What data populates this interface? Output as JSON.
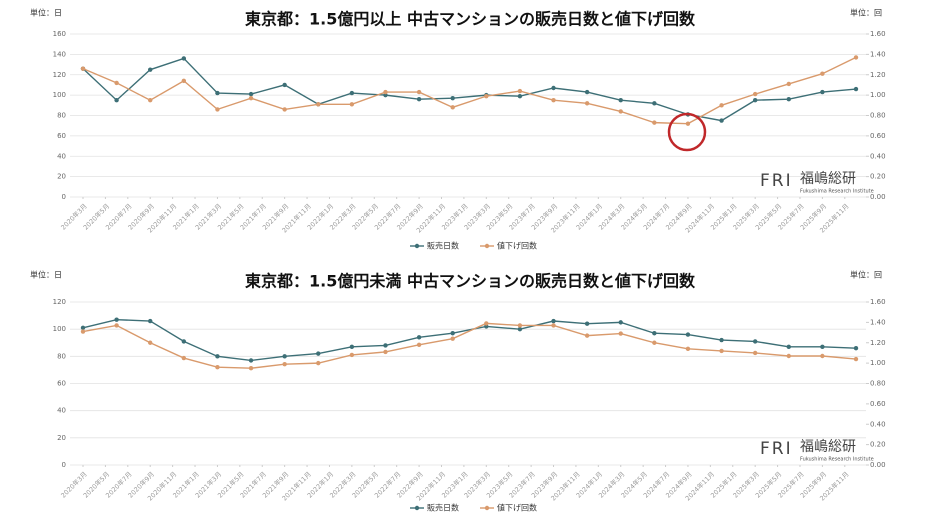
{
  "chart_data": [
    {
      "type": "line",
      "title": "東京都：1.5億円以上 中古マンションの販売日数と値下げ回数",
      "ylabel": "単位：日",
      "y2label": "単位：回",
      "watermark": {
        "mark": "FRI",
        "name": "福嶋総研",
        "subtitle": "Fukushima Research Institute"
      },
      "x": [
        "2020-03",
        "2020-06",
        "2020-09",
        "2020-12",
        "2021-03",
        "2021-06",
        "2021-09",
        "2021-12",
        "2022-03",
        "2022-06",
        "2022-09",
        "2022-12",
        "2023-03",
        "2023-06",
        "2023-09",
        "2023-12",
        "2024-03",
        "2024-06",
        "2024-09",
        "2024-12",
        "2025-03",
        "2025-06",
        "2025-09",
        "2025-12"
      ],
      "xlim": [
        "2020-03",
        "2025-12"
      ],
      "xticks": [
        {
          "value": "2020-03",
          "label": "2020年3月"
        },
        {
          "value": "2020-05",
          "label": "2020年5月"
        },
        {
          "value": "2020-07",
          "label": "2020年7月"
        },
        {
          "value": "2020-09",
          "label": "2020年9月"
        },
        {
          "value": "2020-11",
          "label": "2020年11月"
        },
        {
          "value": "2021-01",
          "label": "2021年1月"
        },
        {
          "value": "2021-03",
          "label": "2021年3月"
        },
        {
          "value": "2021-05",
          "label": "2021年5月"
        },
        {
          "value": "2021-07",
          "label": "2021年7月"
        },
        {
          "value": "2021-09",
          "label": "2021年9月"
        },
        {
          "value": "2021-11",
          "label": "2021年11月"
        },
        {
          "value": "2022-01",
          "label": "2022年1月"
        },
        {
          "value": "2022-03",
          "label": "2022年3月"
        },
        {
          "value": "2022-05",
          "label": "2022年5月"
        },
        {
          "value": "2022-07",
          "label": "2022年7月"
        },
        {
          "value": "2022-09",
          "label": "2022年9月"
        },
        {
          "value": "2022-11",
          "label": "2022年11月"
        },
        {
          "value": "2023-01",
          "label": "2023年1月"
        },
        {
          "value": "2023-03",
          "label": "2023年3月"
        },
        {
          "value": "2023-05",
          "label": "2023年5月"
        },
        {
          "value": "2023-07",
          "label": "2023年7月"
        },
        {
          "value": "2023-09",
          "label": "2023年9月"
        },
        {
          "value": "2023-11",
          "label": "2023年11月"
        },
        {
          "value": "2024-01",
          "label": "2024年1月"
        },
        {
          "value": "2024-03",
          "label": "2024年3月"
        },
        {
          "value": "2024-05",
          "label": "2024年5月"
        },
        {
          "value": "2024-07",
          "label": "2024年7月"
        },
        {
          "value": "2024-09",
          "label": "2024年9月"
        },
        {
          "value": "2024-11",
          "label": "2024年11月"
        },
        {
          "value": "2025-01",
          "label": "2025年1月"
        },
        {
          "value": "2025-03",
          "label": "2025年3月"
        },
        {
          "value": "2025-05",
          "label": "2025年5月"
        },
        {
          "value": "2025-07",
          "label": "2025年7月"
        },
        {
          "value": "2025-09",
          "label": "2025年9月"
        },
        {
          "value": "2025-11",
          "label": "2025年11月"
        }
      ],
      "ylim": [
        0,
        160
      ],
      "yticks": [
        0,
        20,
        40,
        60,
        80,
        100,
        120,
        140,
        160
      ],
      "y2lim": [
        0,
        1.6
      ],
      "y2ticks": [
        {
          "value": 0,
          "label": "0.00"
        },
        {
          "value": 0.2,
          "label": "0.20"
        },
        {
          "value": 0.4,
          "label": "0.40"
        },
        {
          "value": 0.6,
          "label": "0.60"
        },
        {
          "value": 0.8,
          "label": "0.80"
        },
        {
          "value": 1,
          "label": "1.00"
        },
        {
          "value": 1.2,
          "label": "1.20"
        },
        {
          "value": 1.4,
          "label": "1.40"
        },
        {
          "value": 1.6,
          "label": "1.60"
        }
      ],
      "grid": true,
      "series": [
        {
          "name": "販売日数",
          "color": "#3d6f76",
          "values": [
            126,
            95,
            125,
            136,
            102,
            101,
            110,
            91,
            102,
            100,
            96,
            97,
            100,
            99,
            107,
            103,
            95,
            92,
            81,
            75,
            95,
            96,
            103,
            106
          ]
        },
        {
          "name": "値下げ回数",
          "color": "#d99a6c",
          "axis": "y2",
          "values": [
            1.26,
            1.12,
            0.95,
            1.14,
            0.86,
            0.97,
            0.86,
            0.91,
            0.91,
            1.03,
            1.03,
            0.88,
            0.99,
            1.04,
            0.95,
            0.92,
            0.84,
            0.73,
            0.72,
            0.9,
            1.01,
            1.11,
            1.21,
            1.37
          ]
        }
      ]
    },
    {
      "type": "line",
      "title": "東京都：1.5億円未満 中古マンションの販売日数と値下げ回数",
      "ylabel": "単位：日",
      "y2label": "単位：回",
      "watermark": {
        "mark": "FRI",
        "name": "福嶋総研",
        "subtitle": "Fukushima Research Institute"
      },
      "x": [
        "2020-03",
        "2020-06",
        "2020-09",
        "2020-12",
        "2021-03",
        "2021-06",
        "2021-09",
        "2021-12",
        "2022-03",
        "2022-06",
        "2022-09",
        "2022-12",
        "2023-03",
        "2023-06",
        "2023-09",
        "2023-12",
        "2024-03",
        "2024-06",
        "2024-09",
        "2024-12",
        "2025-03",
        "2025-06",
        "2025-09",
        "2025-12"
      ],
      "xlim": [
        "2020-03",
        "2025-12"
      ],
      "xticks": [
        {
          "value": "2020-03",
          "label": "2020年3月"
        },
        {
          "value": "2020-05",
          "label": "2020年5月"
        },
        {
          "value": "2020-07",
          "label": "2020年7月"
        },
        {
          "value": "2020-09",
          "label": "2020年9月"
        },
        {
          "value": "2020-11",
          "label": "2020年11月"
        },
        {
          "value": "2021-01",
          "label": "2021年1月"
        },
        {
          "value": "2021-03",
          "label": "2021年3月"
        },
        {
          "value": "2021-05",
          "label": "2021年5月"
        },
        {
          "value": "2021-07",
          "label": "2021年7月"
        },
        {
          "value": "2021-09",
          "label": "2021年9月"
        },
        {
          "value": "2021-11",
          "label": "2021年11月"
        },
        {
          "value": "2022-01",
          "label": "2022年1月"
        },
        {
          "value": "2022-03",
          "label": "2022年3月"
        },
        {
          "value": "2022-05",
          "label": "2022年5月"
        },
        {
          "value": "2022-07",
          "label": "2022年7月"
        },
        {
          "value": "2022-09",
          "label": "2022年9月"
        },
        {
          "value": "2022-11",
          "label": "2022年11月"
        },
        {
          "value": "2023-01",
          "label": "2023年1月"
        },
        {
          "value": "2023-03",
          "label": "2023年3月"
        },
        {
          "value": "2023-05",
          "label": "2023年5月"
        },
        {
          "value": "2023-07",
          "label": "2023年7月"
        },
        {
          "value": "2023-09",
          "label": "2023年9月"
        },
        {
          "value": "2023-11",
          "label": "2023年11月"
        },
        {
          "value": "2024-01",
          "label": "2024年1月"
        },
        {
          "value": "2024-03",
          "label": "2024年3月"
        },
        {
          "value": "2024-05",
          "label": "2024年5月"
        },
        {
          "value": "2024-07",
          "label": "2024年7月"
        },
        {
          "value": "2024-09",
          "label": "2024年9月"
        },
        {
          "value": "2024-11",
          "label": "2024年11月"
        },
        {
          "value": "2025-01",
          "label": "2025年1月"
        },
        {
          "value": "2025-03",
          "label": "2025年3月"
        },
        {
          "value": "2025-05",
          "label": "2025年5月"
        },
        {
          "value": "2025-07",
          "label": "2025年7月"
        },
        {
          "value": "2025-09",
          "label": "2025年9月"
        },
        {
          "value": "2025-11",
          "label": "2025年11月"
        }
      ],
      "ylim": [
        0,
        120
      ],
      "yticks": [
        0,
        20,
        40,
        60,
        80,
        100,
        120
      ],
      "y2lim": [
        0,
        1.6
      ],
      "y2ticks": [
        {
          "value": 0,
          "label": "0.00"
        },
        {
          "value": 0.2,
          "label": "0.20"
        },
        {
          "value": 0.4,
          "label": "0.40"
        },
        {
          "value": 0.6,
          "label": "0.60"
        },
        {
          "value": 0.8,
          "label": "0.80"
        },
        {
          "value": 1,
          "label": "1.00"
        },
        {
          "value": 1.2,
          "label": "1.20"
        },
        {
          "value": 1.4,
          "label": "1.40"
        },
        {
          "value": 1.6,
          "label": "1.60"
        }
      ],
      "grid": true,
      "series": [
        {
          "name": "販売日数",
          "color": "#3d6f76",
          "values": [
            101,
            107,
            106,
            91,
            80,
            77,
            80,
            82,
            87,
            88,
            94,
            97,
            102,
            100,
            106,
            104,
            105,
            97,
            96,
            92,
            91,
            87,
            87,
            86
          ]
        },
        {
          "name": "値下げ回数",
          "color": "#d99a6c",
          "axis": "y2",
          "values": [
            1.31,
            1.37,
            1.2,
            1.05,
            0.96,
            0.95,
            0.99,
            1.0,
            1.08,
            1.11,
            1.18,
            1.24,
            1.39,
            1.37,
            1.37,
            1.27,
            1.29,
            1.2,
            1.14,
            1.12,
            1.1,
            1.07,
            1.07,
            1.04
          ]
        }
      ]
    }
  ]
}
